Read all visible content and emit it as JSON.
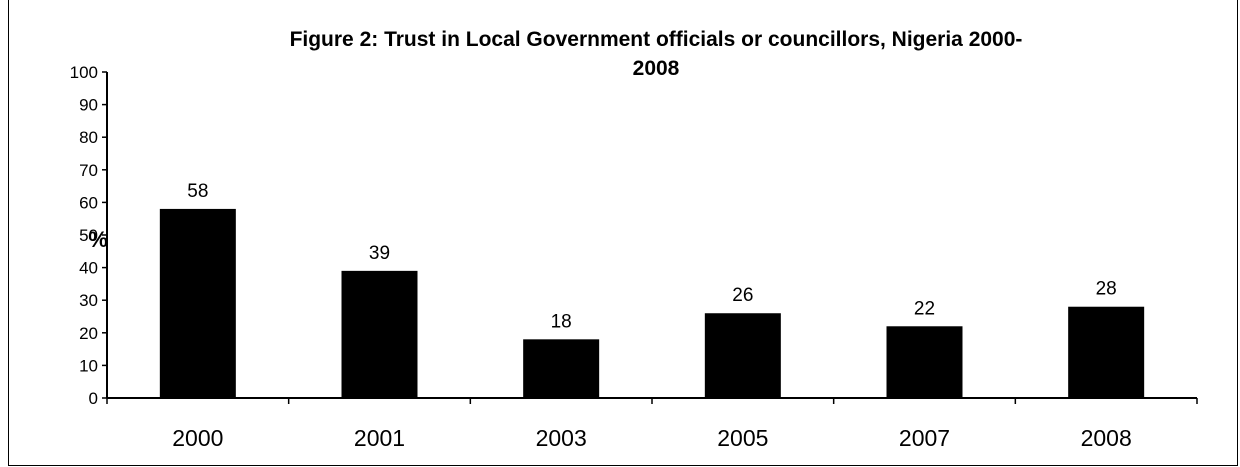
{
  "chart_data": {
    "type": "bar",
    "title_lines": [
      "Figure 2: Trust in  Local Government officials or councillors, Nigeria 2000-",
      "2008"
    ],
    "ylabel": "%",
    "xlabel": "",
    "categories": [
      "2000",
      "2001",
      "2003",
      "2005",
      "2007",
      "2008"
    ],
    "values": [
      58,
      39,
      18,
      26,
      22,
      28
    ],
    "data_labels": [
      "58",
      "39",
      "18",
      "26",
      "22",
      "28"
    ],
    "ylim": [
      0,
      100
    ],
    "yticks": [
      "0",
      "10",
      "20",
      "30",
      "40",
      "50",
      "60",
      "70",
      "80",
      "90",
      "100"
    ],
    "grid": false,
    "legend": "none",
    "bar_color": "#000000"
  }
}
